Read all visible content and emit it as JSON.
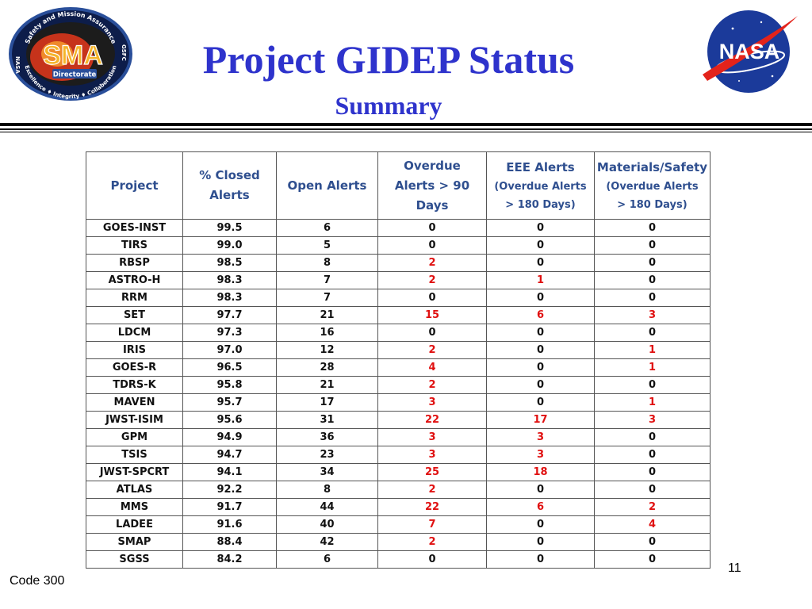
{
  "header": {
    "title": "Project GIDEP Status",
    "subtitle": "Summary"
  },
  "logos": {
    "sma": {
      "ring_top": "Safety and Mission Assurance",
      "ring_bottom": "Excellence ♦ Integrity ♦ Collaboration",
      "left_letters": "NASA",
      "right_letters": "GSFC",
      "main": "SMA",
      "sub": "Directorate"
    },
    "nasa": {
      "text": "NASA"
    }
  },
  "table": {
    "headers": [
      {
        "lines": [
          "Project"
        ]
      },
      {
        "lines": [
          "% Closed",
          "Alerts"
        ]
      },
      {
        "lines": [
          "Open Alerts"
        ]
      },
      {
        "lines": [
          "Overdue",
          "Alerts > 90",
          "Days"
        ]
      },
      {
        "lines": [
          "EEE Alerts",
          "(Overdue Alerts",
          "> 180 Days)"
        ]
      },
      {
        "lines": [
          "Materials/Safety",
          "(Overdue Alerts",
          "> 180 Days)"
        ]
      }
    ],
    "rows": [
      [
        "GOES-INST",
        "99.5",
        "6",
        "0",
        "0",
        "0"
      ],
      [
        "TIRS",
        "99.0",
        "5",
        "0",
        "0",
        "0"
      ],
      [
        "RBSP",
        "98.5",
        "8",
        "2",
        "0",
        "0"
      ],
      [
        "ASTRO-H",
        "98.3",
        "7",
        "2",
        "1",
        "0"
      ],
      [
        "RRM",
        "98.3",
        "7",
        "0",
        "0",
        "0"
      ],
      [
        "SET",
        "97.7",
        "21",
        "15",
        "6",
        "3"
      ],
      [
        "LDCM",
        "97.3",
        "16",
        "0",
        "0",
        "0"
      ],
      [
        "IRIS",
        "97.0",
        "12",
        "2",
        "0",
        "1"
      ],
      [
        "GOES-R",
        "96.5",
        "28",
        "4",
        "0",
        "1"
      ],
      [
        "TDRS-K",
        "95.8",
        "21",
        "2",
        "0",
        "0"
      ],
      [
        "MAVEN",
        "95.7",
        "17",
        "3",
        "0",
        "1"
      ],
      [
        "JWST-ISIM",
        "95.6",
        "31",
        "22",
        "17",
        "3"
      ],
      [
        "GPM",
        "94.9",
        "36",
        "3",
        "3",
        "0"
      ],
      [
        "TSIS",
        "94.7",
        "23",
        "3",
        "3",
        "0"
      ],
      [
        "JWST-SPCRT",
        "94.1",
        "34",
        "25",
        "18",
        "0"
      ],
      [
        "ATLAS",
        "92.2",
        "8",
        "2",
        "0",
        "0"
      ],
      [
        "MMS",
        "91.7",
        "44",
        "22",
        "6",
        "2"
      ],
      [
        "LADEE",
        "91.6",
        "40",
        "7",
        "0",
        "4"
      ],
      [
        "SMAP",
        "88.4",
        "42",
        "2",
        "0",
        "0"
      ],
      [
        "SGSS",
        "84.2",
        "6",
        "0",
        "0",
        "0"
      ]
    ],
    "colors": {
      "header_text": "#2f4f8f",
      "value_text": "#111111",
      "overdue_nonzero": "#e01010"
    }
  },
  "footer": {
    "code": "Code 300",
    "page": "11"
  },
  "colors": {
    "title": "#2e33cc"
  }
}
